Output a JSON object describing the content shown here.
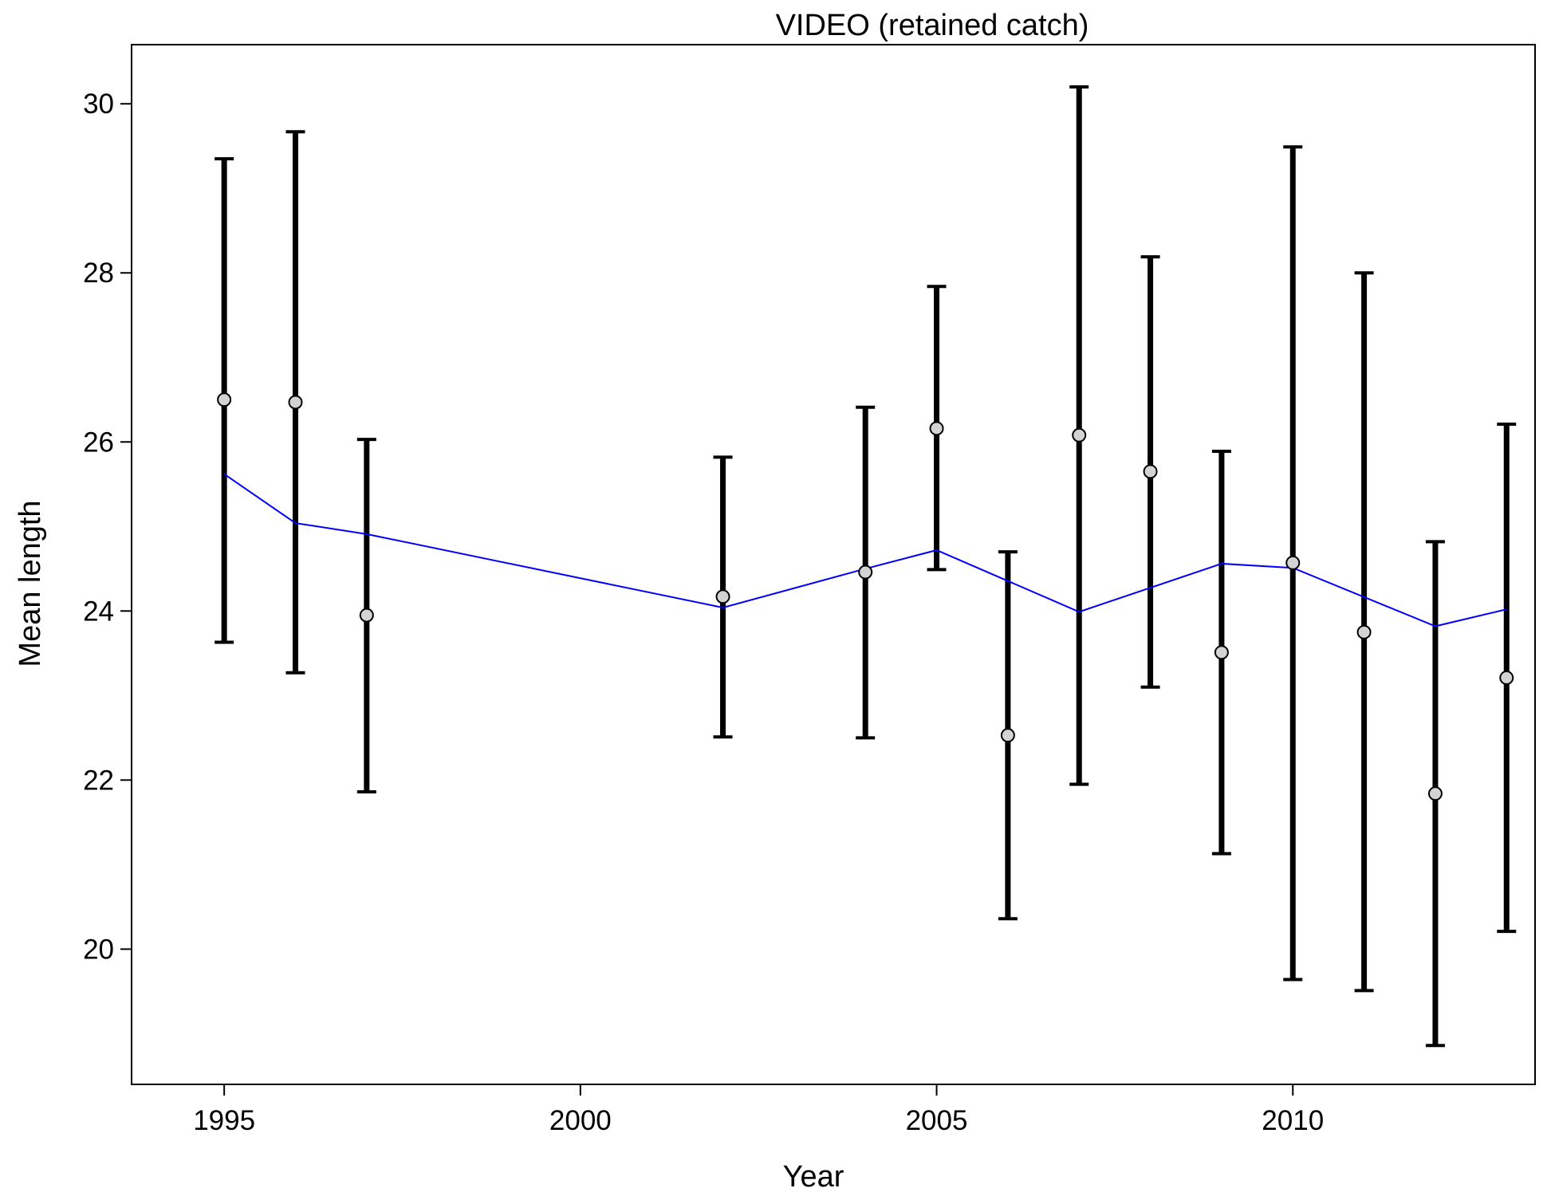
{
  "chart_data": {
    "type": "line",
    "title": "VIDEO (retained catch)",
    "xlabel": "Year",
    "ylabel": "Mean length",
    "xlim": [
      1993.7,
      2013.4
    ],
    "ylim": [
      18.4,
      30.7
    ],
    "xticks": [
      1995,
      2000,
      2005,
      2010
    ],
    "yticks": [
      20,
      22,
      24,
      26,
      28,
      30
    ],
    "grid": false,
    "colors": {
      "observed_point": "#d3d3d3",
      "error_bar": "#000000",
      "expected_line": "#0000ff"
    },
    "series": [
      {
        "kind": "points_with_error_bars",
        "points": [
          {
            "x": 1995,
            "y": 26.5,
            "low": 23.63,
            "high": 29.35
          },
          {
            "x": 1996,
            "y": 26.47,
            "low": 23.27,
            "high": 29.67
          },
          {
            "x": 1997,
            "y": 23.95,
            "low": 21.86,
            "high": 26.03
          },
          {
            "x": 2002,
            "y": 24.17,
            "low": 22.51,
            "high": 25.82
          },
          {
            "x": 2004,
            "y": 24.46,
            "low": 22.5,
            "high": 26.41
          },
          {
            "x": 2005,
            "y": 26.16,
            "low": 24.49,
            "high": 27.84
          },
          {
            "x": 2006,
            "y": 22.53,
            "low": 20.36,
            "high": 24.7
          },
          {
            "x": 2007,
            "y": 26.08,
            "low": 21.95,
            "high": 30.2
          },
          {
            "x": 2008,
            "y": 25.65,
            "low": 23.1,
            "high": 28.19
          },
          {
            "x": 2009,
            "y": 23.51,
            "low": 21.13,
            "high": 25.89
          },
          {
            "x": 2010,
            "y": 24.57,
            "low": 19.64,
            "high": 29.49
          },
          {
            "x": 2011,
            "y": 23.75,
            "low": 19.51,
            "high": 28.0
          },
          {
            "x": 2012,
            "y": 21.84,
            "low": 18.86,
            "high": 24.82
          },
          {
            "x": 2013,
            "y": 23.21,
            "low": 20.21,
            "high": 26.21
          }
        ]
      },
      {
        "kind": "line",
        "x": [
          1995,
          1996,
          1997,
          2002,
          2004,
          2005,
          2007,
          2009,
          2010,
          2012,
          2013
        ],
        "y": [
          25.62,
          25.04,
          24.91,
          24.04,
          24.5,
          24.72,
          23.99,
          24.56,
          24.51,
          23.82,
          24.02
        ]
      }
    ]
  }
}
